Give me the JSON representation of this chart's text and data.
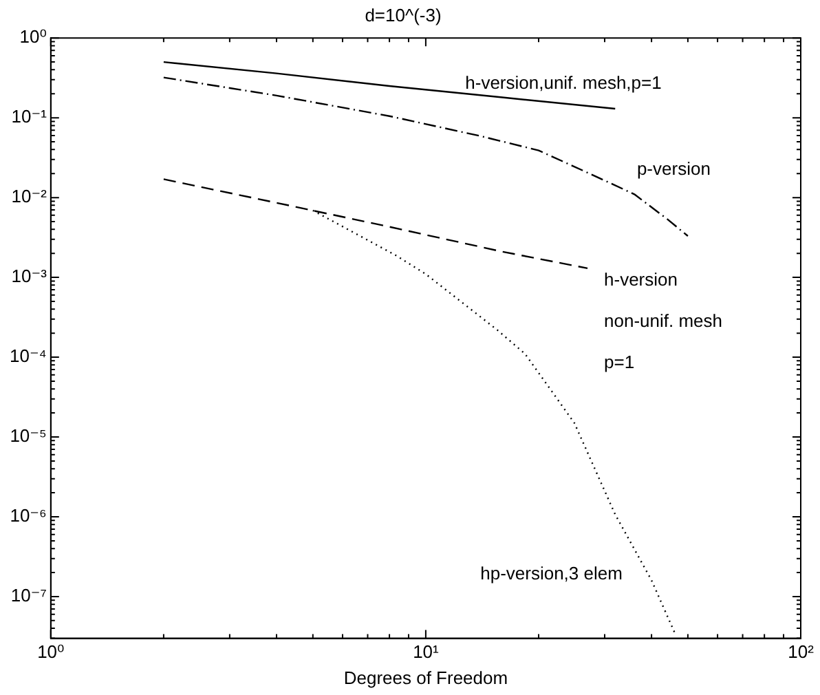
{
  "chart_data": {
    "type": "line",
    "title": "d=10^(-3)",
    "xlabel": "Degrees of Freedom",
    "log": "xy",
    "grid": false,
    "legend": false,
    "marker": "none",
    "xlim": [
      1,
      100
    ],
    "ylim": [
      3e-08,
      1
    ],
    "xticks": [
      {
        "value": 1,
        "label": "10⁰"
      },
      {
        "value": 2,
        "label": null
      },
      {
        "value": 3,
        "label": null
      },
      {
        "value": 4,
        "label": null
      },
      {
        "value": 5,
        "label": null
      },
      {
        "value": 6,
        "label": null
      },
      {
        "value": 7,
        "label": null
      },
      {
        "value": 8,
        "label": null
      },
      {
        "value": 9,
        "label": null
      },
      {
        "value": 10,
        "label": "10¹"
      },
      {
        "value": 20,
        "label": null
      },
      {
        "value": 30,
        "label": null
      },
      {
        "value": 40,
        "label": null
      },
      {
        "value": 50,
        "label": null
      },
      {
        "value": 60,
        "label": null
      },
      {
        "value": 70,
        "label": null
      },
      {
        "value": 80,
        "label": null
      },
      {
        "value": 90,
        "label": null
      },
      {
        "value": 100,
        "label": "10²"
      }
    ],
    "yticks": [
      {
        "value": 3e-08,
        "label": null
      },
      {
        "value": 4e-08,
        "label": null
      },
      {
        "value": 5e-08,
        "label": null
      },
      {
        "value": 6e-08,
        "label": null
      },
      {
        "value": 7e-08,
        "label": null
      },
      {
        "value": 8e-08,
        "label": null
      },
      {
        "value": 9e-08,
        "label": null
      },
      {
        "value": 1e-07,
        "label": "10⁻⁷"
      },
      {
        "value": 2e-07,
        "label": null
      },
      {
        "value": 3e-07,
        "label": null
      },
      {
        "value": 4e-07,
        "label": null
      },
      {
        "value": 5e-07,
        "label": null
      },
      {
        "value": 6e-07,
        "label": null
      },
      {
        "value": 7e-07,
        "label": null
      },
      {
        "value": 8e-07,
        "label": null
      },
      {
        "value": 9e-07,
        "label": null
      },
      {
        "value": 1e-06,
        "label": "10⁻⁶"
      },
      {
        "value": 2e-06,
        "label": null
      },
      {
        "value": 3e-06,
        "label": null
      },
      {
        "value": 4e-06,
        "label": null
      },
      {
        "value": 5e-06,
        "label": null
      },
      {
        "value": 6e-06,
        "label": null
      },
      {
        "value": 7e-06,
        "label": null
      },
      {
        "value": 8e-06,
        "label": null
      },
      {
        "value": 9e-06,
        "label": null
      },
      {
        "value": 1e-05,
        "label": "10⁻⁵"
      },
      {
        "value": 2e-05,
        "label": null
      },
      {
        "value": 3e-05,
        "label": null
      },
      {
        "value": 4e-05,
        "label": null
      },
      {
        "value": 5e-05,
        "label": null
      },
      {
        "value": 6e-05,
        "label": null
      },
      {
        "value": 7e-05,
        "label": null
      },
      {
        "value": 8e-05,
        "label": null
      },
      {
        "value": 9e-05,
        "label": null
      },
      {
        "value": 0.0001,
        "label": "10⁻⁴"
      },
      {
        "value": 0.0002,
        "label": null
      },
      {
        "value": 0.0003,
        "label": null
      },
      {
        "value": 0.0004,
        "label": null
      },
      {
        "value": 0.0005,
        "label": null
      },
      {
        "value": 0.0006,
        "label": null
      },
      {
        "value": 0.0007,
        "label": null
      },
      {
        "value": 0.0008,
        "label": null
      },
      {
        "value": 0.0009,
        "label": null
      },
      {
        "value": 0.001,
        "label": "10⁻³"
      },
      {
        "value": 0.002,
        "label": null
      },
      {
        "value": 0.003,
        "label": null
      },
      {
        "value": 0.004,
        "label": null
      },
      {
        "value": 0.005,
        "label": null
      },
      {
        "value": 0.006,
        "label": null
      },
      {
        "value": 0.007,
        "label": null
      },
      {
        "value": 0.008,
        "label": null
      },
      {
        "value": 0.009,
        "label": null
      },
      {
        "value": 0.01,
        "label": "10⁻²"
      },
      {
        "value": 0.02,
        "label": null
      },
      {
        "value": 0.03,
        "label": null
      },
      {
        "value": 0.04,
        "label": null
      },
      {
        "value": 0.05,
        "label": null
      },
      {
        "value": 0.06,
        "label": null
      },
      {
        "value": 0.07,
        "label": null
      },
      {
        "value": 0.08,
        "label": null
      },
      {
        "value": 0.09,
        "label": null
      },
      {
        "value": 0.1,
        "label": "10⁻¹"
      },
      {
        "value": 0.2,
        "label": null
      },
      {
        "value": 0.3,
        "label": null
      },
      {
        "value": 0.4,
        "label": null
      },
      {
        "value": 0.5,
        "label": null
      },
      {
        "value": 0.6,
        "label": null
      },
      {
        "value": 0.7,
        "label": null
      },
      {
        "value": 0.8,
        "label": null
      },
      {
        "value": 0.9,
        "label": null
      },
      {
        "value": 1,
        "label": "10⁰"
      }
    ],
    "series": [
      {
        "name": "h-version,unif. mesh,p=1",
        "color": "#000000",
        "line_style": "solid",
        "x": [
          2,
          4,
          8,
          16,
          32
        ],
        "values": [
          0.5,
          0.36,
          0.25,
          0.18,
          0.13
        ]
      },
      {
        "name": "p-version",
        "color": "#000000",
        "line_style": "dashdot",
        "x": [
          2,
          4,
          8,
          14,
          20,
          28,
          36,
          44,
          50
        ],
        "values": [
          0.32,
          0.19,
          0.105,
          0.059,
          0.039,
          0.019,
          0.011,
          0.0054,
          0.0033
        ]
      },
      {
        "name": "h-version non-unif. mesh p=1",
        "color": "#000000",
        "line_style": "dashed",
        "x": [
          2,
          4,
          8,
          16,
          27
        ],
        "values": [
          0.017,
          0.0086,
          0.0043,
          0.0021,
          0.0013
        ]
      },
      {
        "name": "hp-version,3 elem",
        "color": "#000000",
        "line_style": "dotted",
        "x": [
          5,
          8.3,
          10,
          15.5,
          18.4,
          24.9,
          32,
          40,
          46.4
        ],
        "values": [
          0.0069,
          0.0019,
          0.0011,
          0.00022,
          0.00011,
          1.5e-05,
          1.07e-06,
          1.6e-07,
          3.3e-08
        ]
      }
    ]
  }
}
